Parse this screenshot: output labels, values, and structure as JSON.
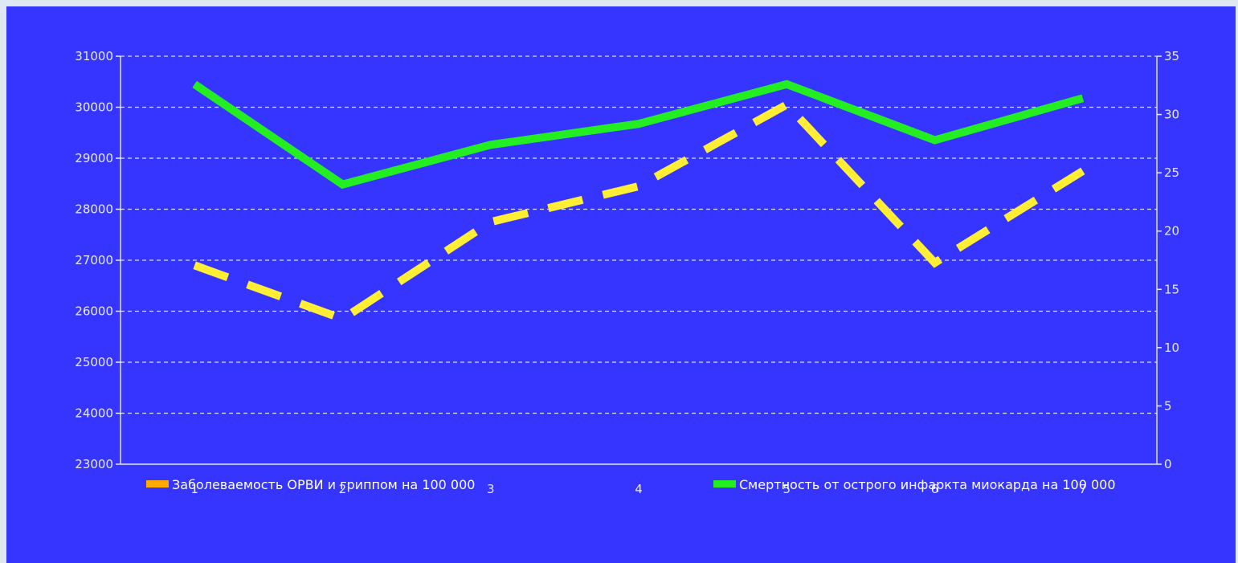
{
  "chart_data": {
    "type": "line",
    "title": "",
    "categories": [
      "1",
      "2",
      "3",
      "4",
      "5",
      "6",
      "7"
    ],
    "y_left": {
      "min": 23000,
      "max": 31000,
      "step": 1000,
      "ticks": [
        "23000",
        "24000",
        "25000",
        "26000",
        "27000",
        "28000",
        "29000",
        "30000",
        "31000"
      ]
    },
    "y_right": {
      "min": 0,
      "max": 35,
      "step": 5,
      "ticks": [
        "0",
        "5",
        "10",
        "15",
        "20",
        "25",
        "30",
        "35"
      ]
    },
    "grid": true,
    "legend_position": "bottom",
    "series": [
      {
        "name": "Заболеваемость ОРВИ и гриппом на 100 000",
        "axis": "left",
        "style": "dashed",
        "line_color": "#ffee33",
        "legend_color": "#ffaa00",
        "values": [
          26900,
          25850,
          27750,
          28450,
          30050,
          26950,
          28750
        ]
      },
      {
        "name": "Смертность от острого инфаркта миокарда на 100 000",
        "axis": "right",
        "style": "solid",
        "line_color": "#22ee22",
        "legend_color": "#22ee22",
        "values": [
          32.6,
          24.0,
          27.4,
          29.2,
          32.6,
          27.8,
          31.4
        ]
      }
    ]
  },
  "colors": {
    "background": "#3535ff",
    "axis": "#e8eaff",
    "grid": "#d8dcff"
  }
}
